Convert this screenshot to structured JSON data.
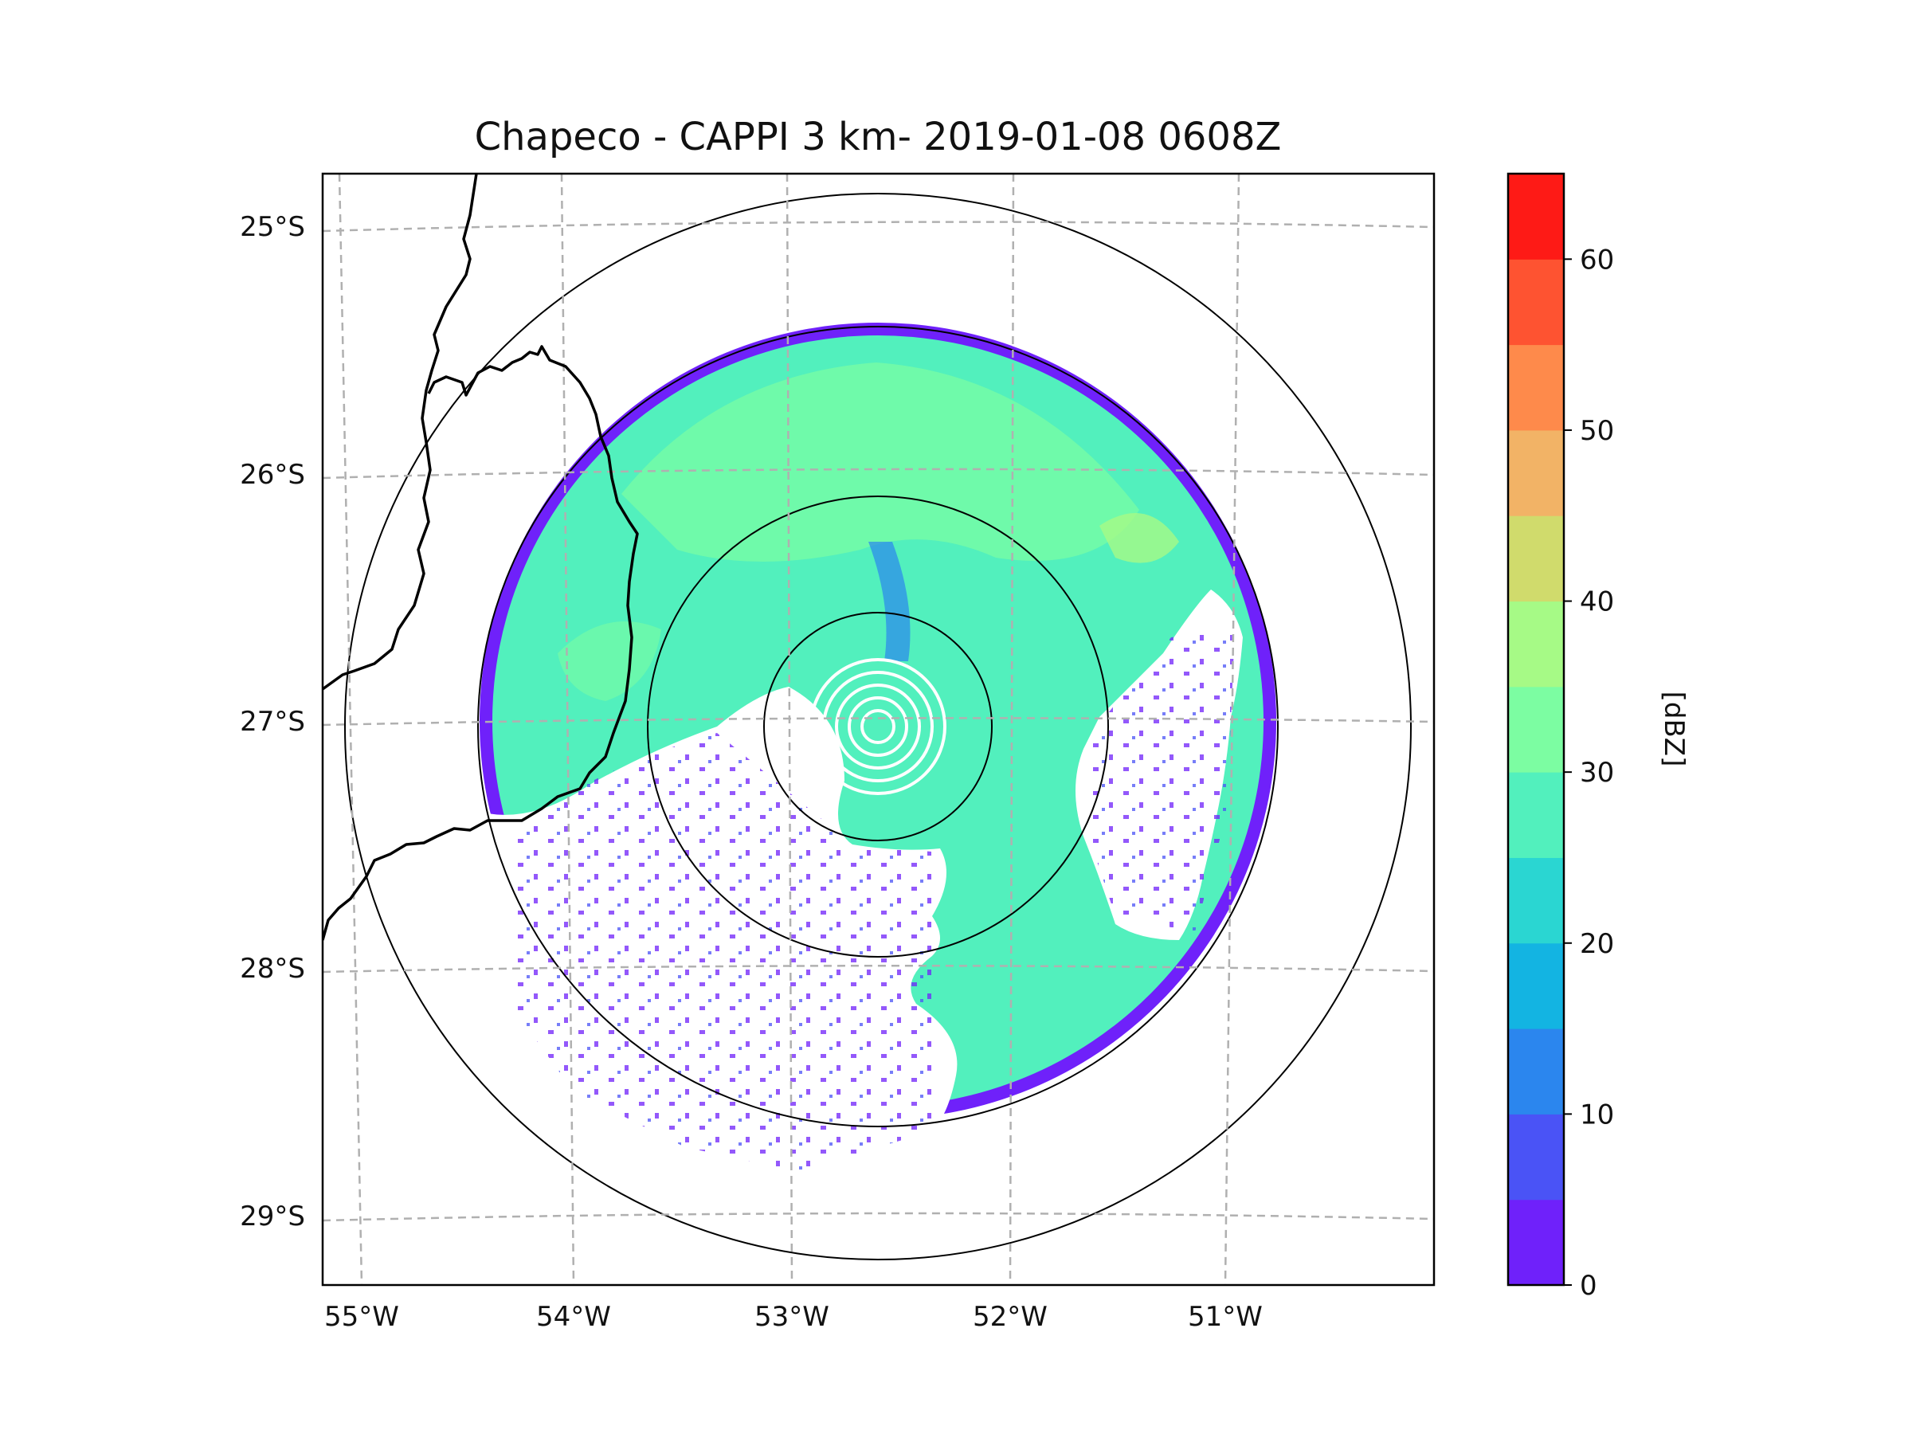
{
  "title": "Chapeco - CAPPI 3 km- 2019-01-08 0608Z",
  "map": {
    "lon_ticks": [
      "55°W",
      "54°W",
      "53°W",
      "52°W",
      "51°W"
    ],
    "lat_ticks": [
      "25°S",
      "26°S",
      "27°S",
      "28°S",
      "29°S"
    ],
    "lon_tick_values": [
      -55,
      -54,
      -53,
      -52,
      -51
    ],
    "lat_tick_values": [
      -25,
      -26,
      -27,
      -28,
      -29
    ],
    "grid": true,
    "gridline_style": "dashed gray",
    "radar_site": {
      "name": "Chapeco",
      "lon": -52.6,
      "lat": -27.0
    },
    "range_rings": 4,
    "borders_color": "#000000"
  },
  "colorbar": {
    "label": "[dBZ]",
    "ticks": [
      "0",
      "10",
      "20",
      "30",
      "40",
      "50",
      "60"
    ],
    "min": 0,
    "max": 65,
    "step": 5,
    "colors": [
      "#6f21fa",
      "#4a53f6",
      "#2b86ee",
      "#13b4e2",
      "#2ad6d2",
      "#52f0bd",
      "#7cfda2",
      "#a6fa86",
      "#d0db6c",
      "#f2b366",
      "#fe8a4b",
      "#fe5331",
      "#fe1a16"
    ]
  }
}
